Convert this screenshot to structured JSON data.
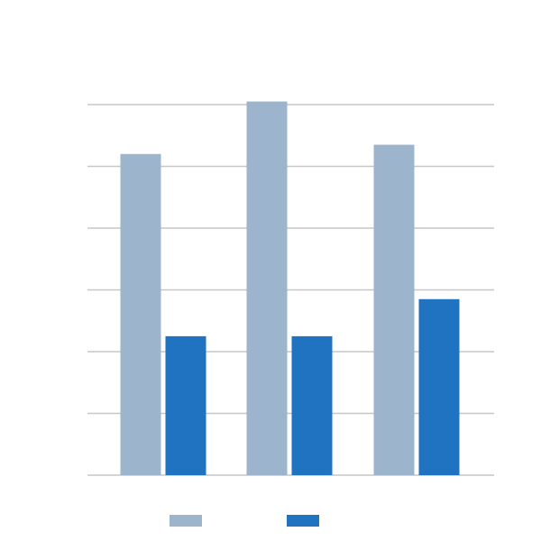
{
  "chart_data": {
    "type": "bar",
    "categories": [
      "",
      "",
      ""
    ],
    "series": [
      {
        "values": [
          5.2,
          6.05,
          5.35
        ],
        "color": "#9cb4cc"
      },
      {
        "values": [
          2.25,
          2.25,
          2.85
        ],
        "color": "#1f73c1"
      }
    ],
    "ylim": [
      0,
      6
    ],
    "grid": true,
    "legend_position": "bottom",
    "title": "",
    "xlabel": "",
    "ylabel": ""
  }
}
